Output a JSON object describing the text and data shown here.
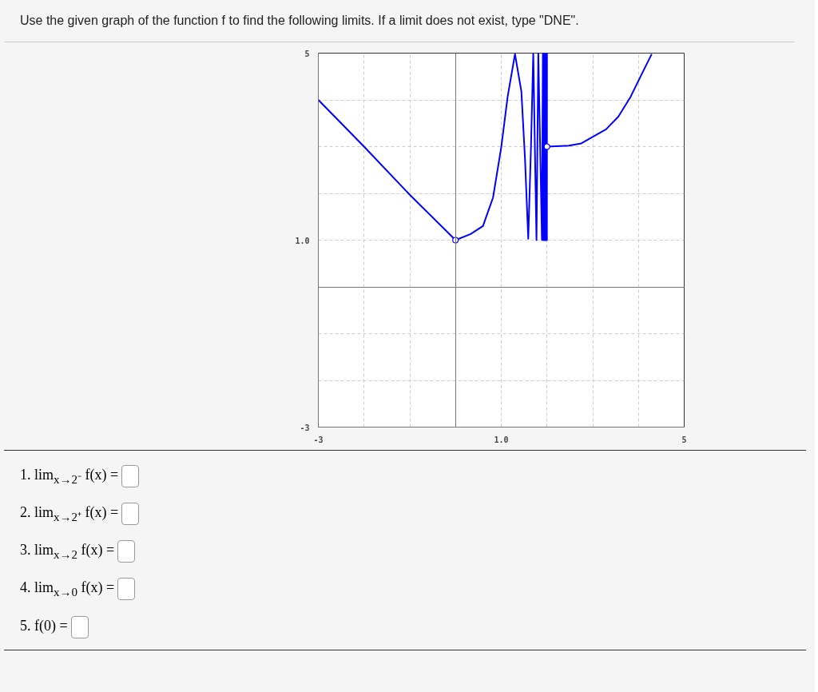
{
  "chart_data": {
    "type": "line",
    "title": "Use the given graph of the function f to find the following limits. If a limit does not exist, type \"DNE\".",
    "xlim": [
      -3,
      5
    ],
    "ylim": [
      -3,
      5
    ],
    "xticks": [
      -3,
      {
        "value": -2,
        "label": null
      },
      {
        "value": -1,
        "label": null
      },
      {
        "value": 0,
        "label": null
      },
      {
        "value": 1,
        "label": "1.0"
      },
      {
        "value": 2,
        "label": null
      },
      {
        "value": 3,
        "label": null
      },
      {
        "value": 4,
        "label": null
      },
      5
    ],
    "yticks": [
      -3,
      {
        "value": -2,
        "label": null
      },
      {
        "value": -1,
        "label": null
      },
      {
        "value": 0,
        "label": null
      },
      {
        "value": 1,
        "label": "1.0"
      },
      {
        "value": 2,
        "label": null
      },
      {
        "value": 3,
        "label": null
      },
      {
        "value": 4,
        "label": null
      },
      5
    ],
    "grid": true,
    "line_style": "solid",
    "series": [
      {
        "type": "line",
        "color": "#0000ff",
        "x": [
          -3,
          -2,
          -1,
          0,
          0.33,
          0.6,
          0.82,
          1.0,
          1.14,
          1.3,
          1.44,
          1.52,
          1.59,
          1.65,
          1.7,
          1.77,
          1.81,
          1.89,
          1.91,
          1.92,
          1.935,
          1.945,
          1.955,
          1.962,
          1.97,
          1.975,
          1.98,
          1.985,
          1.99,
          1.993,
          1.996,
          1.998,
          2.0
        ],
        "values": [
          4,
          3,
          1.97,
          1,
          1.13,
          1.3,
          1.91,
          2.99,
          4.07,
          4.98,
          4.18,
          2.72,
          1.03,
          3.0,
          5,
          1,
          5,
          1,
          5,
          1,
          5,
          1,
          5,
          1,
          5,
          1,
          5,
          1,
          5,
          1,
          5,
          1,
          5
        ]
      },
      {
        "type": "line",
        "color": "#0000ff",
        "x": [
          2.0,
          2.48,
          2.75,
          3.29,
          3.56,
          3.83,
          4.1,
          4.29
        ],
        "values": [
          3,
          3.02,
          3.07,
          3.37,
          3.64,
          4.07,
          4.61,
          4.98
        ]
      },
      {
        "type": "scatter",
        "marker": "circle",
        "color": "#0000ff",
        "x": [
          0,
          2
        ],
        "values": [
          1,
          3
        ]
      }
    ],
    "annotations": [
      "1. lim$_{x→2⁻}$ f(x) =",
      "2. lim$_{x→2⁺}$ f(x) =",
      "3. lim$_{x→2}$ f(x) =",
      "4. lim$_{x→0}$ f(x) =",
      "5. f(0) ="
    ]
  }
}
